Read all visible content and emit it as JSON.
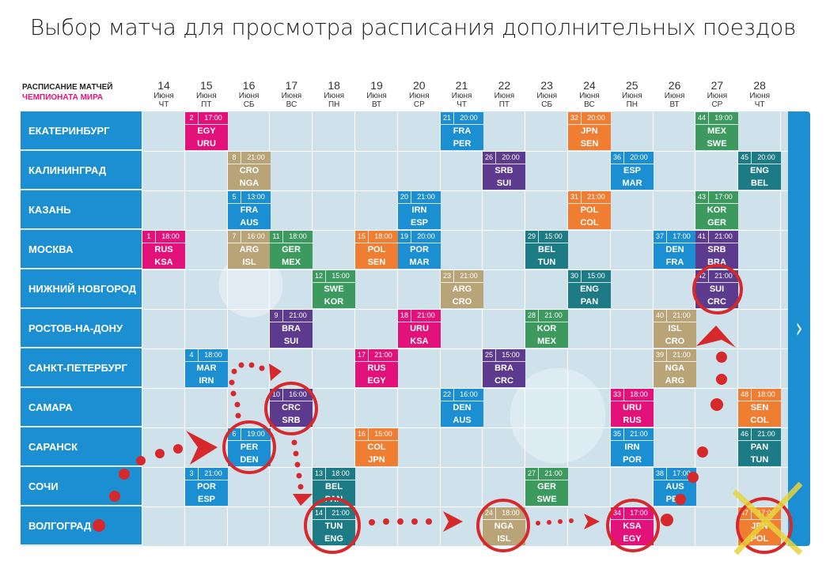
{
  "title": "Выбор матча для просмотра расписания дополнительных поездов",
  "legend": {
    "line1": "РАСПИСАНИЕ МАТЧЕЙ",
    "line2": "ЧЕМПИОНАТА МИРА"
  },
  "colors": {
    "pink": "#e2127a",
    "green": "#3c9a5f",
    "teal": "#2a8a7e",
    "orange": "#ef7d32",
    "blue": "#1b8fd2",
    "purple": "#5c3a8e",
    "tan": "#b9a478",
    "red": "#e03a2f",
    "darkteal": "#1d7b86"
  },
  "days": [
    {
      "n": "14",
      "m": "Июня",
      "w": "ЧТ"
    },
    {
      "n": "15",
      "m": "Июня",
      "w": "ПТ"
    },
    {
      "n": "16",
      "m": "Июня",
      "w": "СБ"
    },
    {
      "n": "17",
      "m": "Июня",
      "w": "ВС"
    },
    {
      "n": "18",
      "m": "Июня",
      "w": "ПН"
    },
    {
      "n": "19",
      "m": "Июня",
      "w": "ВТ"
    },
    {
      "n": "20",
      "m": "Июня",
      "w": "СР"
    },
    {
      "n": "21",
      "m": "Июня",
      "w": "ЧТ"
    },
    {
      "n": "22",
      "m": "Июня",
      "w": "ПТ"
    },
    {
      "n": "23",
      "m": "Июня",
      "w": "СБ"
    },
    {
      "n": "24",
      "m": "Июня",
      "w": "ВС"
    },
    {
      "n": "25",
      "m": "Июня",
      "w": "ПН"
    },
    {
      "n": "26",
      "m": "Июня",
      "w": "ВТ"
    },
    {
      "n": "27",
      "m": "Июня",
      "w": "СР"
    },
    {
      "n": "28",
      "m": "Июня",
      "w": "ЧТ"
    }
  ],
  "cities": [
    "ЕКАТЕРИНБУРГ",
    "КАЛИНИНГРАД",
    "КАЗАНЬ",
    "МОСКВА",
    "НИЖНИЙ НОВГОРОД",
    "РОСТОВ-НА-ДОНУ",
    "САНКТ-ПЕТЕРБУРГ",
    "САМАРА",
    "САРАНСК",
    "СОЧИ",
    "ВОЛГОГРАД"
  ],
  "matches": [
    {
      "row": 0,
      "col": 1,
      "num": "2",
      "time": "17:00",
      "t1": "EGY",
      "t2": "URU",
      "color": "pink"
    },
    {
      "row": 0,
      "col": 7,
      "num": "21",
      "time": "20:00",
      "t1": "FRA",
      "t2": "PER",
      "color": "blue"
    },
    {
      "row": 0,
      "col": 10,
      "num": "32",
      "time": "20:00",
      "t1": "JPN",
      "t2": "SEN",
      "color": "orange"
    },
    {
      "row": 0,
      "col": 13,
      "num": "44",
      "time": "19:00",
      "t1": "MEX",
      "t2": "SWE",
      "color": "green"
    },
    {
      "row": 1,
      "col": 2,
      "num": "8",
      "time": "21:00",
      "t1": "CRO",
      "t2": "NGA",
      "color": "tan"
    },
    {
      "row": 1,
      "col": 8,
      "num": "26",
      "time": "20:00",
      "t1": "SRB",
      "t2": "SUI",
      "color": "purple"
    },
    {
      "row": 1,
      "col": 11,
      "num": "36",
      "time": "20:00",
      "t1": "ESP",
      "t2": "MAR",
      "color": "blue"
    },
    {
      "row": 1,
      "col": 14,
      "num": "45",
      "time": "20:00",
      "t1": "ENG",
      "t2": "BEL",
      "color": "darkteal"
    },
    {
      "row": 2,
      "col": 2,
      "num": "5",
      "time": "13:00",
      "t1": "FRA",
      "t2": "AUS",
      "color": "blue"
    },
    {
      "row": 2,
      "col": 6,
      "num": "20",
      "time": "21:00",
      "t1": "IRN",
      "t2": "ESP",
      "color": "blue"
    },
    {
      "row": 2,
      "col": 10,
      "num": "31",
      "time": "21:00",
      "t1": "POL",
      "t2": "COL",
      "color": "orange"
    },
    {
      "row": 2,
      "col": 13,
      "num": "43",
      "time": "17:00",
      "t1": "KOR",
      "t2": "GER",
      "color": "green"
    },
    {
      "row": 3,
      "col": 0,
      "num": "1",
      "time": "18:00",
      "t1": "RUS",
      "t2": "KSA",
      "color": "pink"
    },
    {
      "row": 3,
      "col": 2,
      "num": "7",
      "time": "16:00",
      "t1": "ARG",
      "t2": "ISL",
      "color": "tan"
    },
    {
      "row": 3,
      "col": 3,
      "num": "11",
      "time": "18:00",
      "t1": "GER",
      "t2": "MEX",
      "color": "green"
    },
    {
      "row": 3,
      "col": 5,
      "num": "15",
      "time": "18:00",
      "t1": "POL",
      "t2": "SEN",
      "color": "orange"
    },
    {
      "row": 3,
      "col": 6,
      "num": "19",
      "time": "20:00",
      "t1": "POR",
      "t2": "MAR",
      "color": "blue"
    },
    {
      "row": 3,
      "col": 9,
      "num": "29",
      "time": "15:00",
      "t1": "BEL",
      "t2": "TUN",
      "color": "darkteal"
    },
    {
      "row": 3,
      "col": 12,
      "num": "37",
      "time": "17:00",
      "t1": "DEN",
      "t2": "FRA",
      "color": "blue"
    },
    {
      "row": 3,
      "col": 13,
      "num": "41",
      "time": "21:00",
      "t1": "SRB",
      "t2": "BRA",
      "color": "purple"
    },
    {
      "row": 4,
      "col": 4,
      "num": "12",
      "time": "15:00",
      "t1": "SWE",
      "t2": "KOR",
      "color": "green"
    },
    {
      "row": 4,
      "col": 7,
      "num": "23",
      "time": "21:00",
      "t1": "ARG",
      "t2": "CRO",
      "color": "tan"
    },
    {
      "row": 4,
      "col": 10,
      "num": "30",
      "time": "15:00",
      "t1": "ENG",
      "t2": "PAN",
      "color": "darkteal"
    },
    {
      "row": 4,
      "col": 13,
      "num": "42",
      "time": "21:00",
      "t1": "SUI",
      "t2": "CRC",
      "color": "purple"
    },
    {
      "row": 5,
      "col": 3,
      "num": "9",
      "time": "21:00",
      "t1": "BRA",
      "t2": "SUI",
      "color": "purple"
    },
    {
      "row": 5,
      "col": 6,
      "num": "18",
      "time": "21:00",
      "t1": "URU",
      "t2": "KSA",
      "color": "pink"
    },
    {
      "row": 5,
      "col": 9,
      "num": "28",
      "time": "21:00",
      "t1": "KOR",
      "t2": "MEX",
      "color": "green"
    },
    {
      "row": 5,
      "col": 12,
      "num": "40",
      "time": "21:00",
      "t1": "ISL",
      "t2": "CRO",
      "color": "tan"
    },
    {
      "row": 6,
      "col": 1,
      "num": "4",
      "time": "18:00",
      "t1": "MAR",
      "t2": "IRN",
      "color": "blue"
    },
    {
      "row": 6,
      "col": 5,
      "num": "17",
      "time": "21:00",
      "t1": "RUS",
      "t2": "EGY",
      "color": "pink"
    },
    {
      "row": 6,
      "col": 8,
      "num": "25",
      "time": "15:00",
      "t1": "BRA",
      "t2": "CRC",
      "color": "purple"
    },
    {
      "row": 6,
      "col": 12,
      "num": "39",
      "time": "21:00",
      "t1": "NGA",
      "t2": "ARG",
      "color": "tan"
    },
    {
      "row": 7,
      "col": 3,
      "num": "10",
      "time": "16:00",
      "t1": "CRC",
      "t2": "SRB",
      "color": "purple"
    },
    {
      "row": 7,
      "col": 7,
      "num": "22",
      "time": "16:00",
      "t1": "DEN",
      "t2": "AUS",
      "color": "blue"
    },
    {
      "row": 7,
      "col": 11,
      "num": "33",
      "time": "18:00",
      "t1": "URU",
      "t2": "RUS",
      "color": "pink"
    },
    {
      "row": 7,
      "col": 14,
      "num": "48",
      "time": "18:00",
      "t1": "SEN",
      "t2": "COL",
      "color": "orange"
    },
    {
      "row": 8,
      "col": 2,
      "num": "6",
      "time": "19:00",
      "t1": "PER",
      "t2": "DEN",
      "color": "blue"
    },
    {
      "row": 8,
      "col": 5,
      "num": "16",
      "time": "15:00",
      "t1": "COL",
      "t2": "JPN",
      "color": "orange"
    },
    {
      "row": 8,
      "col": 11,
      "num": "35",
      "time": "21:00",
      "t1": "IRN",
      "t2": "POR",
      "color": "blue"
    },
    {
      "row": 8,
      "col": 14,
      "num": "46",
      "time": "21:00",
      "t1": "PAN",
      "t2": "TUN",
      "color": "darkteal"
    },
    {
      "row": 9,
      "col": 1,
      "num": "3",
      "time": "21:00",
      "t1": "POR",
      "t2": "ESP",
      "color": "blue"
    },
    {
      "row": 9,
      "col": 4,
      "num": "13",
      "time": "18:00",
      "t1": "BEL",
      "t2": "PAN",
      "color": "darkteal"
    },
    {
      "row": 9,
      "col": 9,
      "num": "27",
      "time": "21:00",
      "t1": "GER",
      "t2": "SWE",
      "color": "green"
    },
    {
      "row": 9,
      "col": 12,
      "num": "38",
      "time": "17:00",
      "t1": "AUS",
      "t2": "PER",
      "color": "blue"
    },
    {
      "row": 10,
      "col": 4,
      "num": "14",
      "time": "21:00",
      "t1": "TUN",
      "t2": "ENG",
      "color": "darkteal"
    },
    {
      "row": 10,
      "col": 8,
      "num": "24",
      "time": "18:00",
      "t1": "NGA",
      "t2": "ISL",
      "color": "tan"
    },
    {
      "row": 10,
      "col": 11,
      "num": "34",
      "time": "17:00",
      "t1": "KSA",
      "t2": "EGY",
      "color": "pink"
    },
    {
      "row": 10,
      "col": 14,
      "num": "47",
      "time": "17:00",
      "t1": "JPN",
      "t2": "POL",
      "color": "orange"
    }
  ],
  "nav_arrow": "›"
}
